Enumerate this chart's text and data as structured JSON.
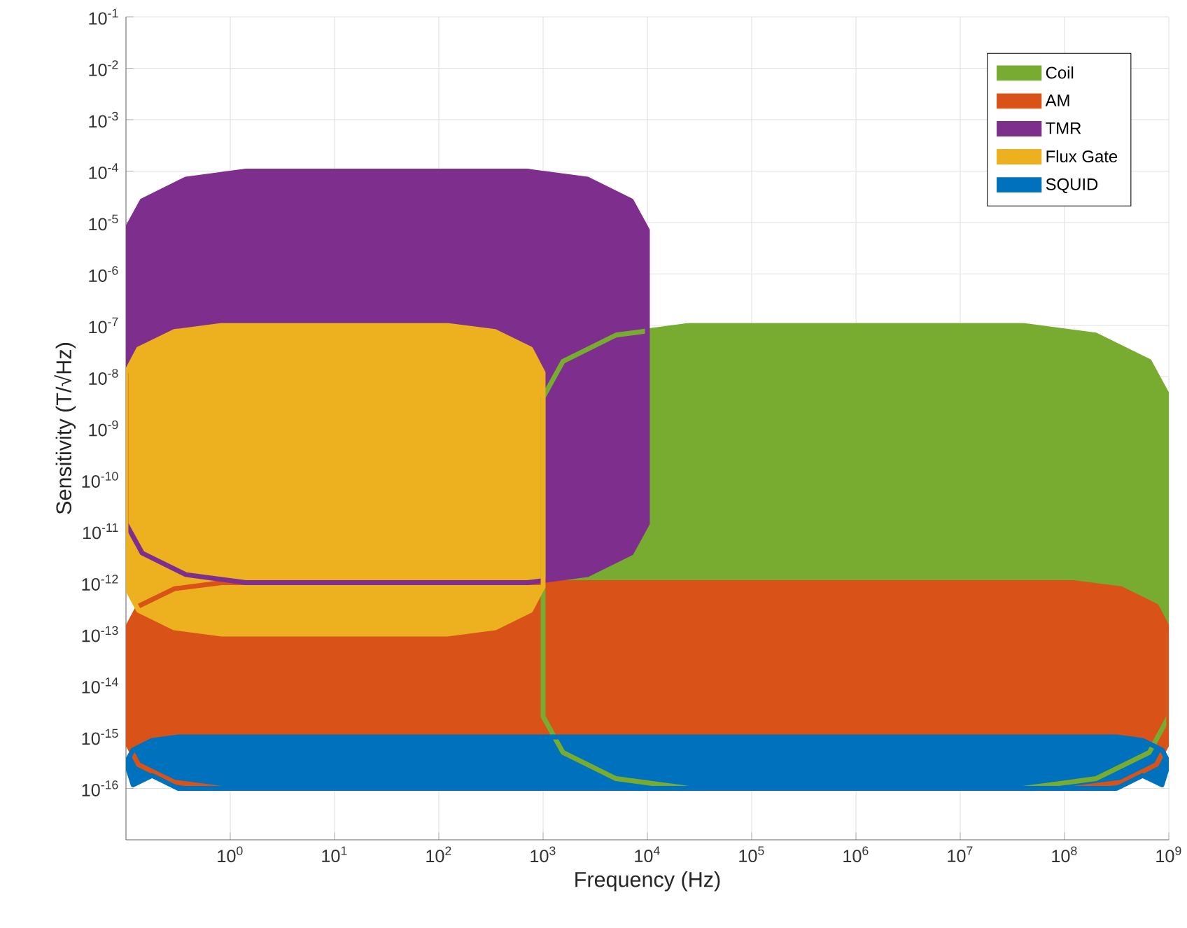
{
  "chart_data": {
    "type": "area",
    "xlabel": "Frequency (Hz)",
    "ylabel": "Sensitivity (T/√Hz)",
    "log": "xy",
    "grid": true,
    "legend": "top right",
    "xlim": [
      0.1,
      1000000000
    ],
    "ylim": [
      1e-17,
      0.1
    ],
    "xticks": [
      {
        "value": 1,
        "label": "10$^{0}$"
      },
      {
        "value": 10,
        "label": "10$^{1}$"
      },
      {
        "value": 100,
        "label": "10$^{2}$"
      },
      {
        "value": 1000,
        "label": "10$^{3}$"
      },
      {
        "value": 10000,
        "label": "10$^{4}$"
      },
      {
        "value": 100000,
        "label": "10$^{5}$"
      },
      {
        "value": 1000000,
        "label": "10$^{6}$"
      },
      {
        "value": 10000000,
        "label": "10$^{7}$"
      },
      {
        "value": 100000000,
        "label": "10$^{8}$"
      },
      {
        "value": 1000000000,
        "label": "10$^{9}$"
      }
    ],
    "yticks": [
      {
        "value": 1e-16,
        "label": "10$^{-16}$"
      },
      {
        "value": 1e-15,
        "label": "10$^{-15}$"
      },
      {
        "value": 1e-14,
        "label": "10$^{-14}$"
      },
      {
        "value": 1e-13,
        "label": "10$^{-13}$"
      },
      {
        "value": 1e-12,
        "label": "10$^{-12}$"
      },
      {
        "value": 1e-11,
        "label": "10$^{-11}$"
      },
      {
        "value": 1e-10,
        "label": "10$^{-10}$"
      },
      {
        "value": 1e-09,
        "label": "10$^{-9}$"
      },
      {
        "value": 1e-08,
        "label": "10$^{-8}$"
      },
      {
        "value": 1e-07,
        "label": "10$^{-7}$"
      },
      {
        "value": 1e-06,
        "label": "10$^{-6}$"
      },
      {
        "value": 1e-05,
        "label": "10$^{-5}$"
      },
      {
        "value": 0.0001,
        "label": "10$^{-4}$"
      },
      {
        "value": 0.001,
        "label": "10$^{-3}$"
      },
      {
        "value": 0.01,
        "label": "10$^{-2}$"
      },
      {
        "value": 0.1,
        "label": "10$^{-1}$"
      }
    ],
    "series": [
      {
        "name": "Coil",
        "color": "#77ac30",
        "x": [
          1000,
          1550,
          5000,
          25000,
          40000000,
          200000000,
          650000000,
          1000000000,
          1000000000,
          650000000,
          200000000,
          40000000,
          25000,
          5000,
          1550,
          1000
        ],
        "values": [
          4e-09,
          2e-08,
          6.5e-08,
          1e-07,
          1e-07,
          6.5e-08,
          2e-08,
          4e-09,
          2.5e-15,
          5e-16,
          1.55e-16,
          1e-16,
          1e-16,
          1.55e-16,
          5e-16,
          2.5e-15
        ]
      },
      {
        "name": "AM",
        "color": "#d95319",
        "x": [
          0.1,
          0.132,
          0.29,
          0.83,
          120000000,
          350000000,
          760000000,
          1000000000,
          1000000000,
          760000000,
          350000000,
          120000000,
          0.83,
          0.29,
          0.132,
          0.1
        ],
        "values": [
          1.2e-13,
          3.5e-13,
          7.6e-13,
          1e-12,
          1e-12,
          7.6e-13,
          3.5e-13,
          1.2e-13,
          8.3e-16,
          2.9e-16,
          1.32e-16,
          1e-16,
          1e-16,
          1.32e-16,
          2.9e-16,
          8.3e-16
        ]
      },
      {
        "name": "TMR",
        "color": "#7e2f8e",
        "x": [
          0.1,
          0.143,
          0.376,
          1.41,
          708,
          2660,
          7000,
          10000,
          10000,
          7000,
          2660,
          708,
          1.41,
          0.376,
          0.143,
          0.1
        ],
        "values": [
          7.1e-06,
          2.66e-05,
          7e-05,
          0.0001,
          0.0001,
          7e-05,
          2.66e-05,
          7.1e-06,
          1.41e-11,
          3.76e-12,
          1.43e-12,
          1e-12,
          1e-12,
          1.43e-12,
          3.76e-12,
          1.41e-11
        ]
      },
      {
        "name": "Flux Gate",
        "color": "#edb120",
        "x": [
          0.1,
          0.132,
          0.29,
          0.83,
          120,
          347,
          760,
          1000,
          1000,
          760,
          347,
          120,
          0.83,
          0.29,
          0.132,
          0.1
        ],
        "values": [
          1.2e-08,
          3.5e-08,
          7.6e-08,
          1e-07,
          1e-07,
          7.6e-08,
          3.5e-08,
          1.2e-08,
          8.3e-13,
          2.9e-13,
          1.32e-13,
          1e-13,
          1e-13,
          1.32e-13,
          2.9e-13,
          8.3e-13
        ]
      },
      {
        "name": "SQUID",
        "color": "#0072bd",
        "x": [
          0.1,
          0.117,
          0.178,
          0.316,
          316000000,
          560000000,
          860000000,
          1000000000,
          860000000,
          560000000,
          316000000,
          0.316,
          0.178,
          0.117
        ],
        "values": [
          3.16e-16,
          5.6e-16,
          8.6e-16,
          1e-15,
          1e-15,
          8.6e-16,
          5.6e-16,
          3.16e-16,
          1.17e-16,
          1.78e-16,
          1e-16,
          1e-16,
          1.78e-16,
          1.17e-16
        ]
      }
    ]
  }
}
